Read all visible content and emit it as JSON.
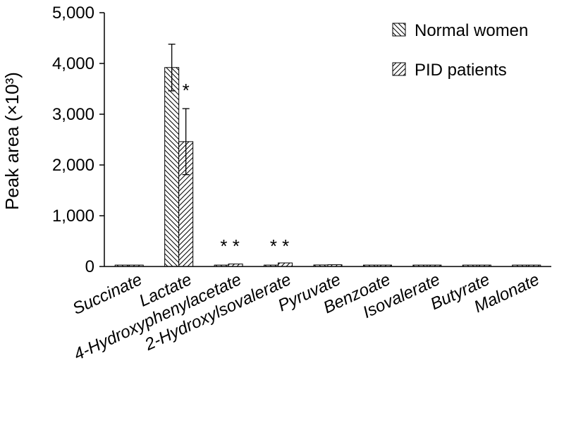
{
  "chart_data": {
    "type": "bar",
    "ylabel": "Peak area (×10³)",
    "ylim": [
      0,
      5000
    ],
    "yticks": [
      "0",
      "1,000",
      "2,000",
      "3,000",
      "4,000",
      "5,000"
    ],
    "ytick_values": [
      0,
      1000,
      2000,
      3000,
      4000,
      5000
    ],
    "categories": [
      "Succinate",
      "Lactate",
      "4-Hydroxyphenylacetate",
      "2-Hydroxylsovalerate",
      "Pyruvate",
      "Benzoate",
      "Isovalerate",
      "Butyrate",
      "Malonate"
    ],
    "series": [
      {
        "name": "Normal women",
        "pattern": "back-diagonal",
        "values": [
          15,
          3920,
          15,
          20,
          30,
          10,
          10,
          10,
          8
        ],
        "errors": [
          0,
          460,
          0,
          0,
          0,
          0,
          0,
          0,
          0
        ]
      },
      {
        "name": "PID patients",
        "pattern": "forward-diagonal",
        "values": [
          12,
          2460,
          50,
          70,
          35,
          10,
          10,
          10,
          8
        ],
        "errors": [
          0,
          650,
          0,
          0,
          0,
          0,
          0,
          0,
          0
        ]
      }
    ],
    "significance": [
      "",
      "*",
      "**",
      "**",
      "",
      "",
      "",
      "",
      ""
    ],
    "legend_position": "top-right",
    "grid": false,
    "colors": {
      "axis": "#000000",
      "bar_fill": "#ffffff",
      "hatch": "#000000"
    }
  }
}
